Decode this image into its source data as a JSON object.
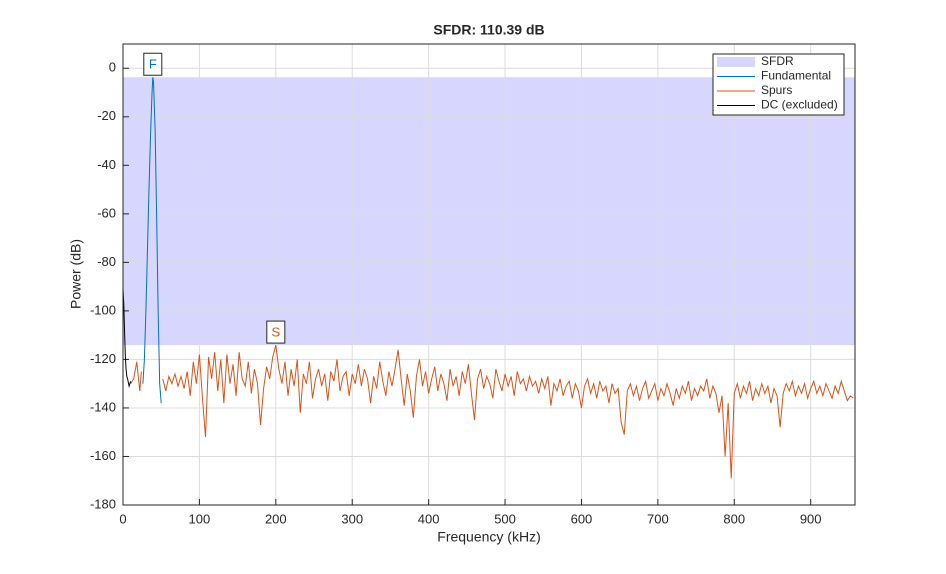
{
  "chart_data": {
    "type": "line",
    "title": "SFDR: 110.39 dB",
    "xlabel": "Frequency (kHz)",
    "ylabel": "Power (dB)",
    "xlim": [
      0,
      958
    ],
    "ylim": [
      -180,
      10
    ],
    "xticks": [
      0,
      100,
      200,
      300,
      400,
      500,
      600,
      700,
      800,
      900
    ],
    "yticks": [
      -180,
      -160,
      -140,
      -120,
      -100,
      -80,
      -60,
      -40,
      -20,
      0
    ],
    "grid": true,
    "legend": "northeast",
    "series": [
      {
        "name": "SFDR",
        "color": "#d6d6ff",
        "style": "band",
        "values": [
          -3.7,
          -114.09
        ]
      },
      {
        "name": "Fundamental",
        "color": "#0072bd",
        "x": [
          26,
          28,
          30,
          32,
          34,
          36,
          38,
          39,
          40,
          42,
          44,
          46,
          48,
          50
        ],
        "values": [
          -130,
          -120,
          -100,
          -75,
          -50,
          -28,
          -10,
          -3.7,
          -6,
          -25,
          -60,
          -100,
          -130,
          -138
        ]
      },
      {
        "name": "Spurs",
        "color": "#d95319",
        "x": [
          10,
          14,
          18,
          22,
          24,
          38,
          52,
          56,
          60,
          64,
          68,
          72,
          76,
          80,
          84,
          88,
          92,
          96,
          100,
          104,
          108,
          112,
          116,
          120,
          124,
          128,
          132,
          136,
          140,
          144,
          148,
          152,
          156,
          160,
          164,
          168,
          172,
          176,
          180,
          184,
          188,
          192,
          196,
          200,
          204,
          208,
          212,
          216,
          220,
          224,
          228,
          232,
          236,
          240,
          244,
          248,
          252,
          256,
          260,
          264,
          268,
          272,
          276,
          280,
          284,
          288,
          292,
          296,
          300,
          304,
          308,
          312,
          316,
          320,
          324,
          328,
          332,
          336,
          340,
          344,
          348,
          352,
          356,
          360,
          364,
          368,
          372,
          376,
          380,
          384,
          388,
          392,
          396,
          400,
          404,
          408,
          412,
          416,
          420,
          424,
          428,
          432,
          436,
          440,
          444,
          448,
          452,
          456,
          460,
          464,
          468,
          472,
          476,
          480,
          484,
          488,
          492,
          496,
          500,
          504,
          508,
          512,
          516,
          520,
          524,
          528,
          532,
          536,
          540,
          544,
          548,
          552,
          556,
          560,
          564,
          568,
          572,
          576,
          580,
          584,
          588,
          592,
          596,
          600,
          604,
          608,
          612,
          616,
          620,
          624,
          628,
          632,
          636,
          640,
          644,
          648,
          652,
          656,
          660,
          664,
          668,
          672,
          676,
          680,
          684,
          688,
          692,
          696,
          700,
          704,
          708,
          712,
          716,
          720,
          724,
          728,
          732,
          736,
          740,
          744,
          748,
          752,
          756,
          760,
          764,
          768,
          772,
          776,
          780,
          784,
          788,
          792,
          796,
          800,
          804,
          808,
          812,
          816,
          820,
          824,
          828,
          832,
          836,
          840,
          844,
          848,
          852,
          856,
          860,
          864,
          868,
          872,
          876,
          880,
          884,
          888,
          892,
          896,
          900,
          904,
          908,
          912,
          916,
          920,
          924,
          928,
          932,
          936,
          940,
          944,
          948,
          952,
          956
        ],
        "values": [
          -130,
          -128,
          -121,
          -133,
          -125,
          null,
          -128,
          -133,
          -127,
          -130,
          -126,
          -131,
          -127,
          -132,
          -125,
          -135,
          -121,
          -130,
          -118,
          -136,
          -152,
          -119,
          -128,
          -117,
          -133,
          -120,
          -138,
          -118,
          -130,
          -122,
          -135,
          -117,
          -128,
          -131,
          -121,
          -134,
          -124,
          -130,
          -147,
          -132,
          -123,
          -128,
          -119,
          -114.09,
          -124,
          -130,
          -121,
          -135,
          -124,
          -131,
          -120,
          -142,
          -126,
          -130,
          -121,
          -136,
          -128,
          -124,
          -131,
          -126,
          -137,
          -125,
          -129,
          -120,
          -133,
          -127,
          -125,
          -135,
          -126,
          -130,
          -122,
          -131,
          -124,
          -128,
          -138,
          -127,
          -132,
          -121,
          -129,
          -135,
          -125,
          -131,
          -124,
          -116,
          -128,
          -139,
          -126,
          -133,
          -144,
          -127,
          -120,
          -131,
          -125,
          -134,
          -128,
          -123,
          -133,
          -126,
          -130,
          -137,
          -124,
          -131,
          -127,
          -135,
          -125,
          -130,
          -122,
          -134,
          -145,
          -128,
          -124,
          -132,
          -127,
          -130,
          -136,
          -124,
          -129,
          -133,
          -126,
          -131,
          -127,
          -135,
          -125,
          -130,
          -128,
          -133,
          -127,
          -131,
          -129,
          -134,
          -128,
          -132,
          -127,
          -139,
          -130,
          -133,
          -128,
          -135,
          -131,
          -129,
          -136,
          -130,
          -133,
          -140,
          -131,
          -128,
          -134,
          -130,
          -136,
          -129,
          -133,
          -131,
          -138,
          -130,
          -134,
          -132,
          -146,
          -151,
          -133,
          -130,
          -135,
          -131,
          -137,
          -132,
          -129,
          -136,
          -133,
          -130,
          -137,
          -132,
          -135,
          -130,
          -134,
          -139,
          -132,
          -136,
          -131,
          -134,
          -129,
          -137,
          -132,
          -135,
          -131,
          -133,
          -128,
          -136,
          -131,
          -134,
          -142,
          -135,
          -160,
          -138,
          -169,
          -134,
          -130,
          -136,
          -131,
          -134,
          -129,
          -137,
          -132,
          -135,
          -130,
          -134,
          -131,
          -138,
          -132,
          -135,
          -148,
          -134,
          -130,
          -133,
          -129,
          -135,
          -131,
          -134,
          -130,
          -136,
          -132,
          -129,
          -134,
          -131,
          -135,
          -130,
          -133,
          -136,
          -131,
          -134,
          -129,
          -133,
          -137,
          -135,
          -136
        ]
      },
      {
        "name": "DC (excluded)",
        "color": "#000000",
        "x": [
          0,
          1,
          2,
          3,
          4,
          5,
          6,
          8,
          10
        ],
        "values": [
          -91,
          -97,
          -108,
          -118,
          -124,
          -127,
          -128,
          -131,
          -129
        ]
      }
    ],
    "annotations": [
      {
        "text": "F",
        "x": 39,
        "y": -3.7,
        "color": "#0072bd"
      },
      {
        "text": "S",
        "x": 200,
        "y": -114.09,
        "color": "#d95319"
      }
    ]
  }
}
